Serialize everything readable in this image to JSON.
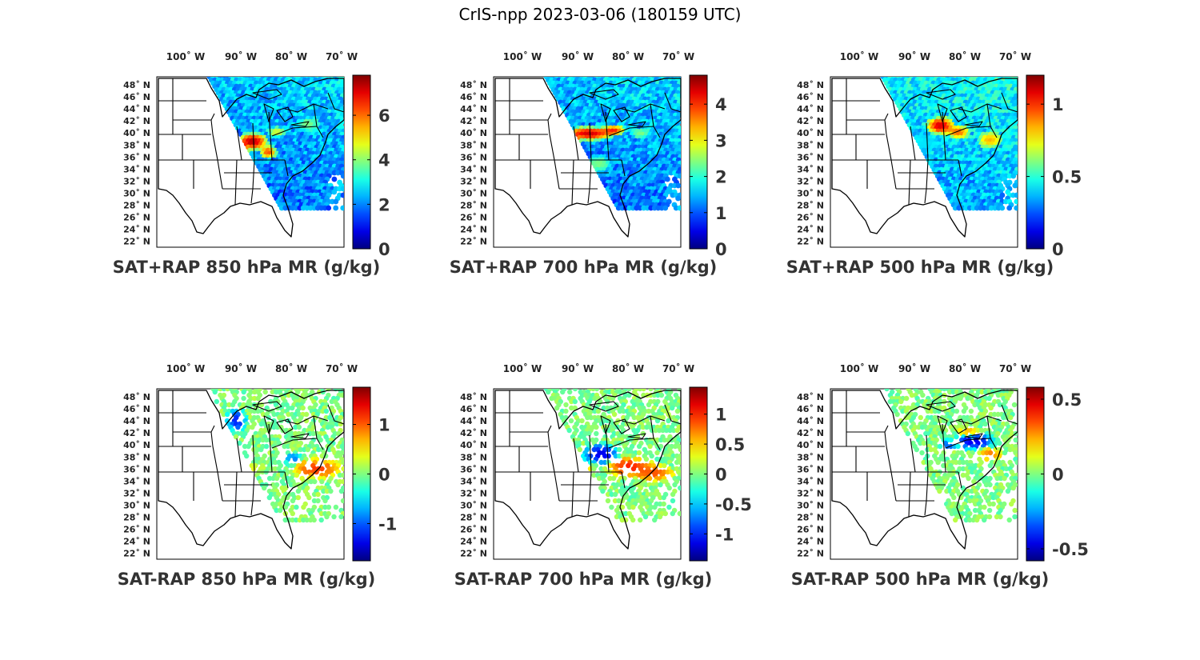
{
  "figure": {
    "title": "CrIS-npp 2023-03-06 (180159 UTC)"
  },
  "map_axes": {
    "lon_labels": [
      "100˚ W",
      "90˚ W",
      "80˚ W",
      "70˚ W"
    ],
    "lat_labels": [
      "48˚ N",
      "46˚ N",
      "44˚ N",
      "42˚ N",
      "40˚ N",
      "38˚ N",
      "36˚ N",
      "34˚ N",
      "32˚ N",
      "30˚ N",
      "28˚ N",
      "26˚ N",
      "24˚ N",
      "22˚ N"
    ]
  },
  "colormap": "jet",
  "chart_data": [
    {
      "type": "heatmap",
      "title": "SAT+RAP 850 hPa MR (g/kg)",
      "colorbar": {
        "range": [
          0,
          7.8
        ],
        "ticks": [
          "0",
          "2",
          "4",
          "6"
        ],
        "tick_values": [
          0,
          2,
          4,
          6
        ]
      }
    },
    {
      "type": "heatmap",
      "title": "SAT+RAP 700 hPa MR (g/kg)",
      "colorbar": {
        "range": [
          0,
          4.8
        ],
        "ticks": [
          "0",
          "1",
          "2",
          "3",
          "4"
        ],
        "tick_values": [
          0,
          1,
          2,
          3,
          4
        ]
      }
    },
    {
      "type": "heatmap",
      "title": "SAT+RAP 500 hPa MR (g/kg)",
      "colorbar": {
        "range": [
          0,
          1.2
        ],
        "ticks": [
          "0",
          "0.5",
          "1"
        ],
        "tick_values": [
          0,
          0.5,
          1
        ]
      }
    },
    {
      "type": "heatmap",
      "title": "SAT-RAP 850 hPa MR (g/kg)",
      "colorbar": {
        "range": [
          -1.75,
          1.75
        ],
        "ticks": [
          "-1",
          "0",
          "1"
        ],
        "tick_values": [
          -1,
          0,
          1
        ]
      }
    },
    {
      "type": "heatmap",
      "title": "SAT-RAP 700 hPa MR (g/kg)",
      "colorbar": {
        "range": [
          -1.45,
          1.45
        ],
        "ticks": [
          "-1",
          "-0.5",
          "0",
          "0.5",
          "1"
        ],
        "tick_values": [
          -1,
          -0.5,
          0,
          0.5,
          1
        ]
      }
    },
    {
      "type": "heatmap",
      "title": "SAT-RAP 500 hPa MR (g/kg)",
      "colorbar": {
        "range": [
          -0.58,
          0.58
        ],
        "ticks": [
          "-0.5",
          "0",
          "0.5"
        ],
        "tick_values": [
          -0.5,
          0,
          0.5
        ]
      }
    }
  ]
}
